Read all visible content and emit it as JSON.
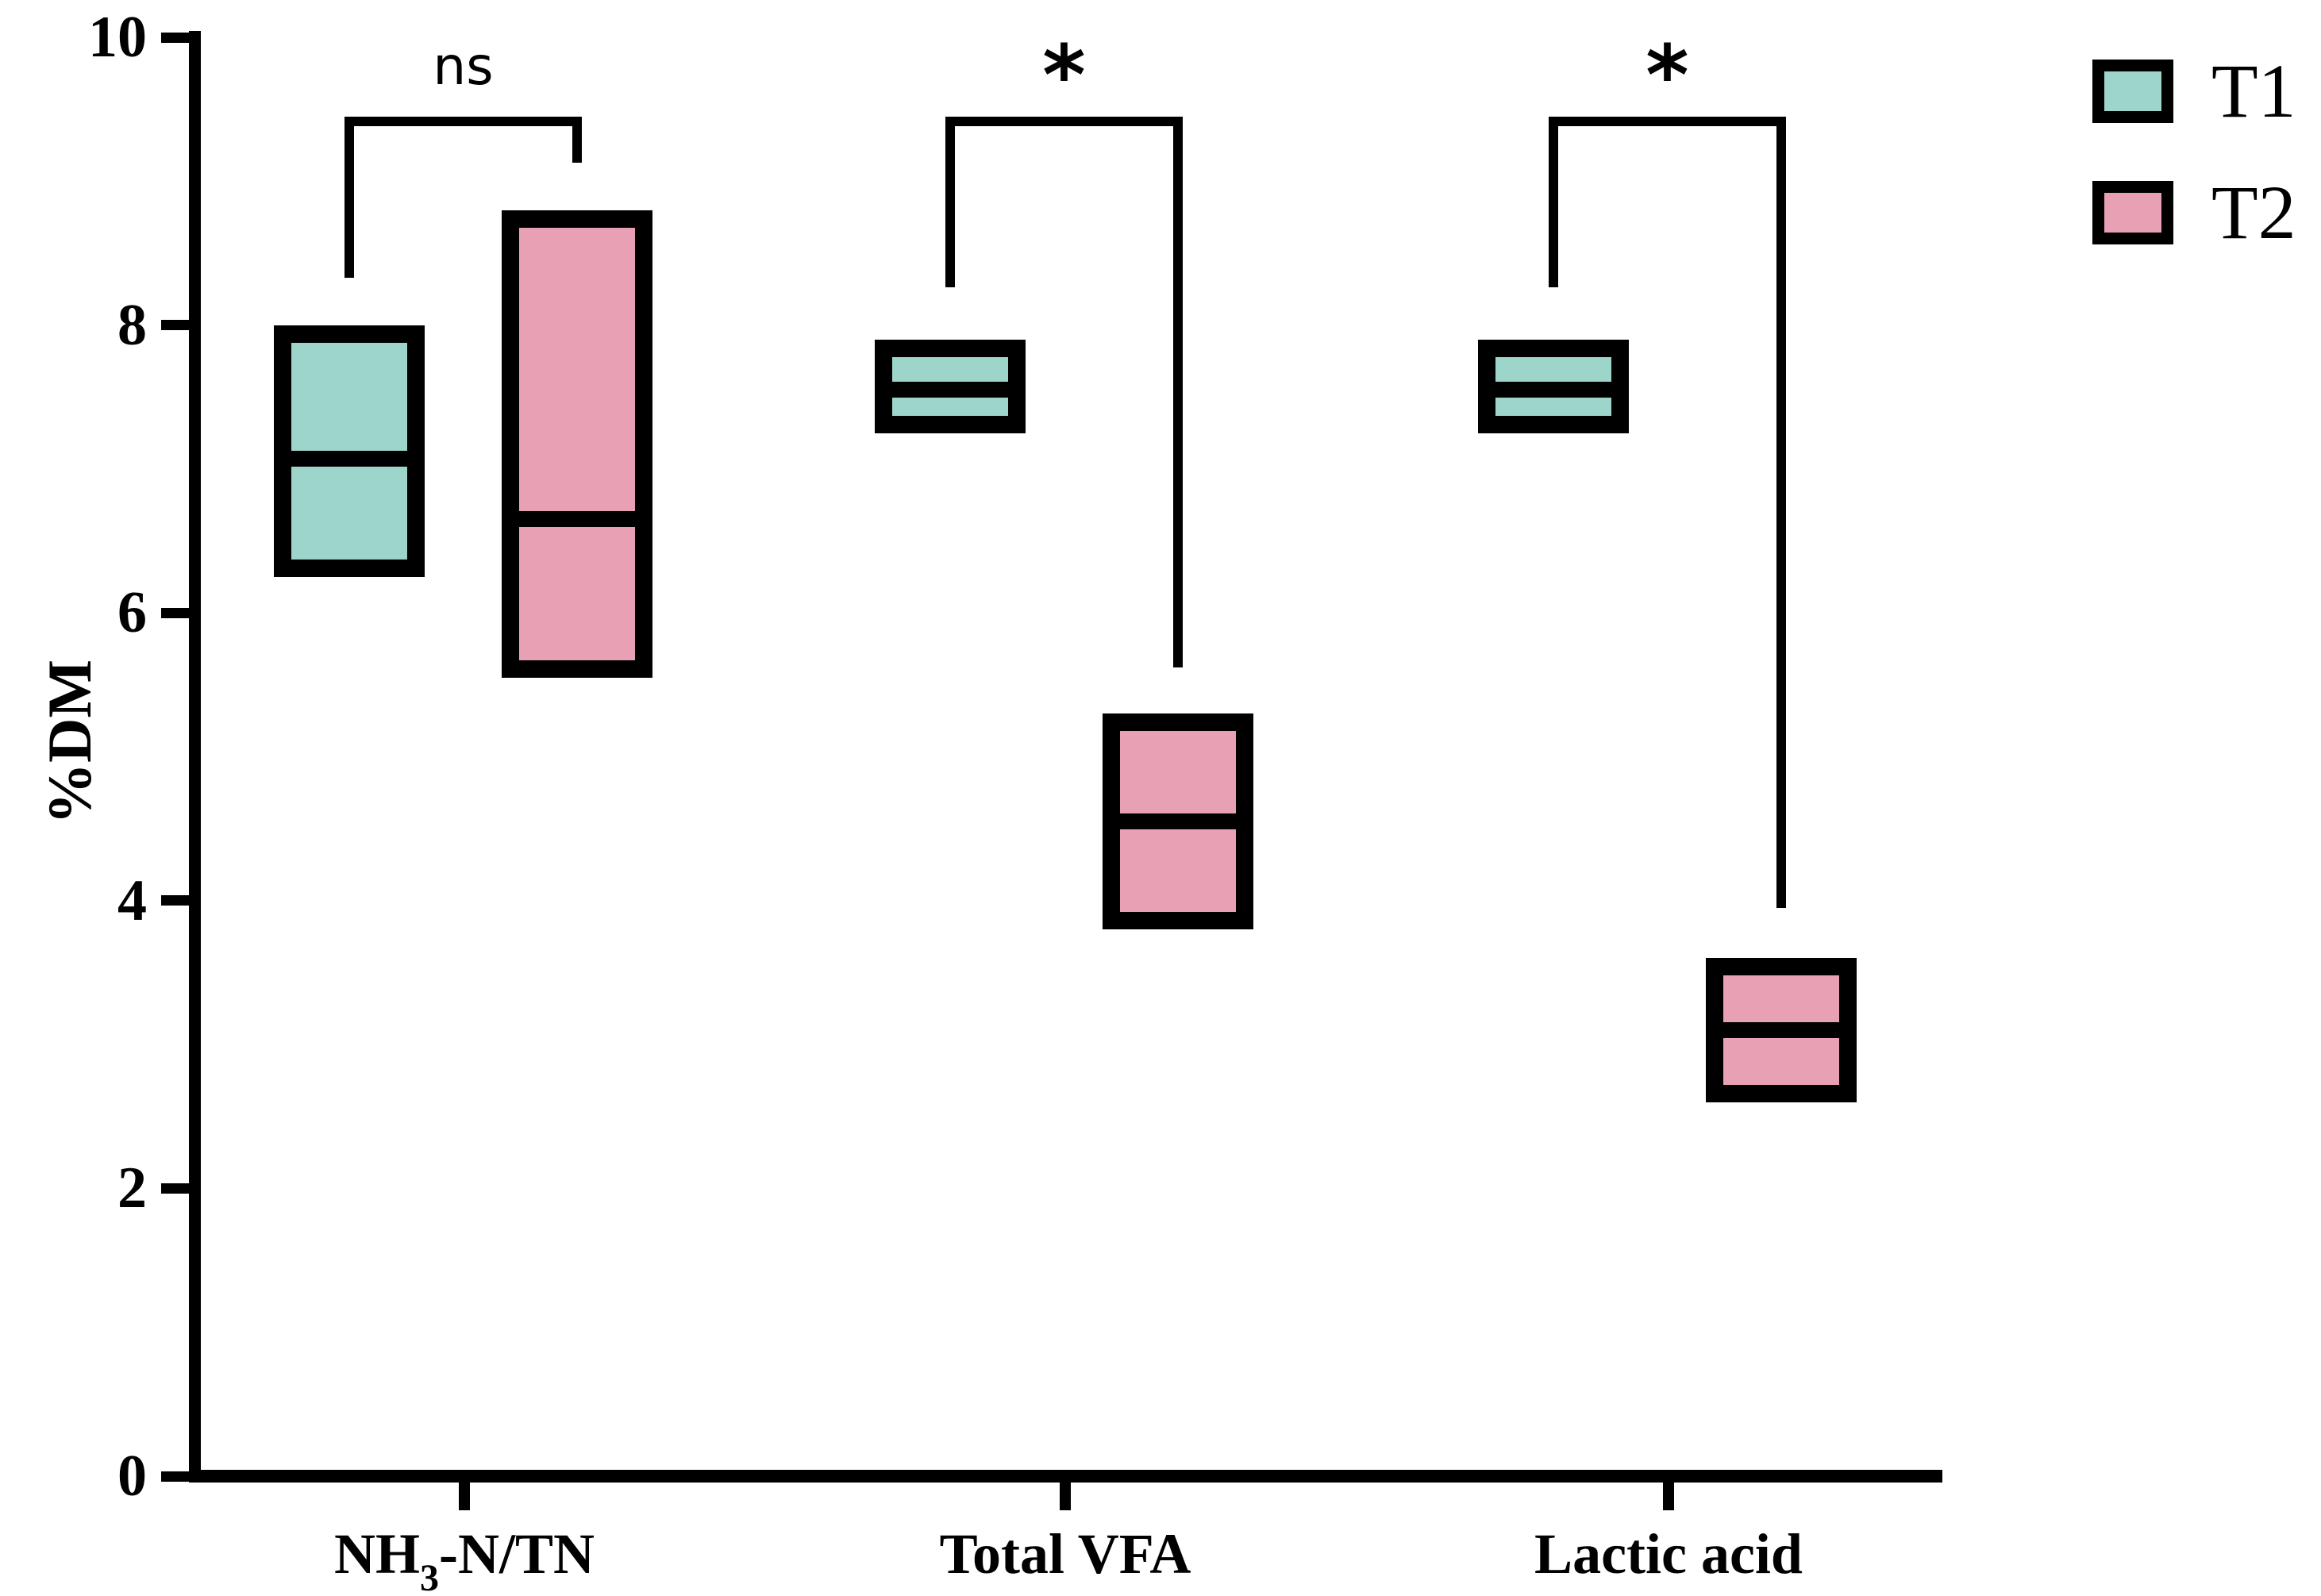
{
  "chart_data": {
    "type": "box",
    "title": "",
    "ylabel": "%DM",
    "ylim": [
      0,
      10
    ],
    "yticks": [
      0,
      2,
      4,
      6,
      8,
      10
    ],
    "grid": false,
    "legend_position": "top-right",
    "categories": [
      {
        "text": "NH3-N/TN",
        "pre": "NH",
        "sub": "3",
        "post": "-N/TN"
      },
      {
        "text": "Total VFA",
        "pre": "Total VFA",
        "sub": "",
        "post": ""
      },
      {
        "text": "Lactic acid",
        "pre": "Lactic acid",
        "sub": "",
        "post": ""
      }
    ],
    "series": [
      {
        "name": "T1",
        "color": "#9DD5CA",
        "boxes": [
          {
            "min": 6.25,
            "median": 7.07,
            "max": 8.0
          },
          {
            "min": 7.25,
            "median": 7.55,
            "max": 7.9
          },
          {
            "min": 7.25,
            "median": 7.55,
            "max": 7.9
          }
        ]
      },
      {
        "name": "T2",
        "color": "#E8A0B5",
        "boxes": [
          {
            "min": 5.55,
            "median": 6.65,
            "max": 8.8
          },
          {
            "min": 3.8,
            "median": 4.55,
            "max": 5.3
          },
          {
            "min": 2.6,
            "median": 3.1,
            "max": 3.6
          }
        ]
      }
    ],
    "significance": [
      {
        "label": "ns",
        "top": 9.45,
        "left_leg_end": 8.33,
        "right_leg_end": 9.13
      },
      {
        "label": "*",
        "top": 9.45,
        "left_leg_end": 8.26,
        "right_leg_end": 5.62
      },
      {
        "label": "*",
        "top": 9.45,
        "left_leg_end": 8.26,
        "right_leg_end": 3.95
      }
    ]
  }
}
